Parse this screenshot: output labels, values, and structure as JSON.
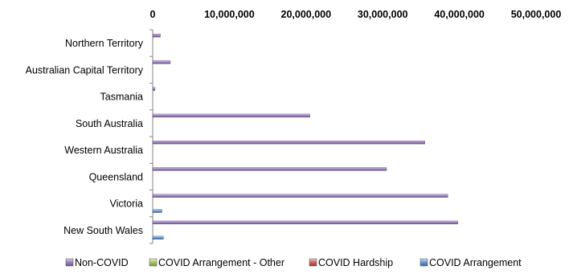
{
  "chart_data": {
    "type": "bar",
    "orientation": "horizontal",
    "title": "",
    "xlabel": "",
    "ylabel": "",
    "xlim": [
      0,
      50000000
    ],
    "x_ticks": [
      0,
      10000000,
      20000000,
      30000000,
      40000000,
      50000000
    ],
    "x_tick_labels": [
      "0",
      "10,000,000",
      "20,000,000",
      "30,000,000",
      "40,000,000",
      "50,000,000"
    ],
    "x_axis_position": "top",
    "grid": false,
    "legend_position": "bottom",
    "categories": [
      "New South Wales",
      "Victoria",
      "Queensland",
      "Western Australia",
      "South Australia",
      "Tasmania",
      "Australian Capital Territory",
      "Northern Territory"
    ],
    "series": [
      {
        "name": "COVID Arrangement",
        "color": "#4f81bd",
        "values": [
          1400000,
          1200000,
          0,
          0,
          0,
          0,
          0,
          0
        ]
      },
      {
        "name": "COVID Hardship",
        "color": "#c0504d",
        "values": [
          0,
          0,
          0,
          0,
          0,
          0,
          0,
          0
        ]
      },
      {
        "name": "COVID Arrangement - Other",
        "color": "#9bbb59",
        "values": [
          0,
          0,
          0,
          0,
          0,
          0,
          0,
          0
        ]
      },
      {
        "name": "Non-COVID",
        "color": "#8064a2",
        "values": [
          39800000,
          38500000,
          30500000,
          35500000,
          20500000,
          300000,
          2300000,
          1000000
        ]
      }
    ],
    "legend_order": [
      "Non-COVID",
      "COVID Arrangement - Other",
      "COVID Hardship",
      "COVID Arrangement"
    ]
  }
}
